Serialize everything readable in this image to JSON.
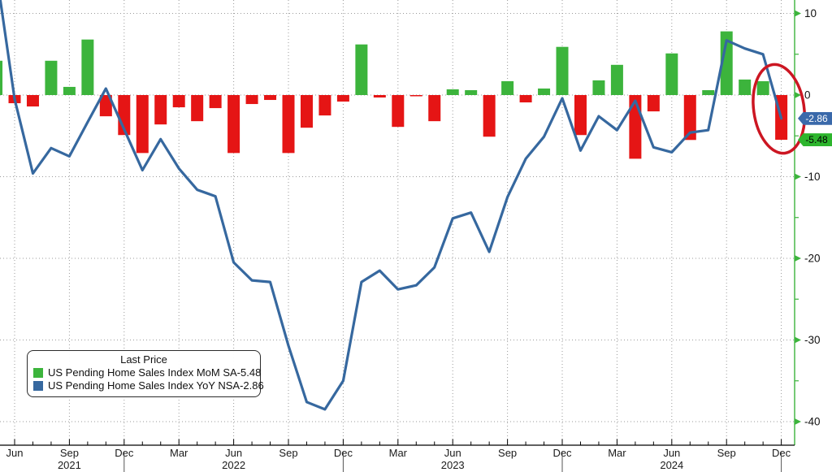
{
  "legend": {
    "title": "Last Price",
    "series": [
      {
        "label": "US Pending Home Sales Index MoM SA",
        "value": "-5.48",
        "color": "#3cb43c"
      },
      {
        "label": "US Pending Home Sales Index YoY NSA",
        "value": "-2.86",
        "color": "#36689f"
      }
    ]
  },
  "badges": {
    "yoy": {
      "text": "-2.86",
      "value": -2.86,
      "bg": "#3a69aa",
      "fg": "#ffffff"
    },
    "mom": {
      "text": "-5.48",
      "value": -5.48,
      "bg": "#2db52d",
      "fg": "#000000"
    }
  },
  "chart_data": {
    "type": "bar+line",
    "title": "",
    "x_unit": "month",
    "grid": "dotted",
    "ylim": [
      -40,
      10
    ],
    "y_axis": {
      "side": "right",
      "majors": [
        10,
        0,
        -10,
        -20,
        -30,
        -40
      ],
      "major_labels": [
        "10",
        "0",
        "-10",
        "-20",
        "-30",
        "-40"
      ],
      "minors": [
        5,
        -5,
        -15,
        -25,
        -35
      ],
      "color": "#3cb43c"
    },
    "series": [
      {
        "name": "US Pending Home Sales Index MoM SA",
        "type": "bar",
        "field": "mom",
        "color_up": "#3cb43c",
        "color_down": "#e51515",
        "last": -5.48
      },
      {
        "name": "US Pending Home Sales Index YoY NSA",
        "type": "line",
        "field": "yoy",
        "color": "#36689f",
        "last": -2.86
      }
    ],
    "months": [
      {
        "name": "May",
        "year": 2021,
        "mom": 4.2,
        "yoy": 15.0
      },
      {
        "name": "Jun",
        "year": 2021,
        "mom": -1.0,
        "yoy": -0.5
      },
      {
        "name": "Jul",
        "year": 2021,
        "mom": -1.4,
        "yoy": -9.6
      },
      {
        "name": "Aug",
        "year": 2021,
        "mom": 4.2,
        "yoy": -6.5
      },
      {
        "name": "Sep",
        "year": 2021,
        "mom": 1.0,
        "yoy": -7.5
      },
      {
        "name": "Oct",
        "year": 2021,
        "mom": 6.8,
        "yoy": -3.3
      },
      {
        "name": "Nov",
        "year": 2021,
        "mom": -2.6,
        "yoy": 0.8
      },
      {
        "name": "Dec",
        "year": 2021,
        "mom": -4.9,
        "yoy": -4.2
      },
      {
        "name": "Jan",
        "year": 2022,
        "mom": -7.1,
        "yoy": -9.2
      },
      {
        "name": "Feb",
        "year": 2022,
        "mom": -3.6,
        "yoy": -5.4
      },
      {
        "name": "Mar",
        "year": 2022,
        "mom": -1.5,
        "yoy": -9.0
      },
      {
        "name": "Apr",
        "year": 2022,
        "mom": -3.2,
        "yoy": -11.6
      },
      {
        "name": "May",
        "year": 2022,
        "mom": -1.6,
        "yoy": -12.4
      },
      {
        "name": "Jun",
        "year": 2022,
        "mom": -7.1,
        "yoy": -20.5
      },
      {
        "name": "Jul",
        "year": 2022,
        "mom": -1.1,
        "yoy": -22.7
      },
      {
        "name": "Aug",
        "year": 2022,
        "mom": -0.6,
        "yoy": -22.9
      },
      {
        "name": "Sep",
        "year": 2022,
        "mom": -7.1,
        "yoy": -30.7
      },
      {
        "name": "Oct",
        "year": 2022,
        "mom": -4.0,
        "yoy": -37.6
      },
      {
        "name": "Nov",
        "year": 2022,
        "mom": -2.5,
        "yoy": -38.5
      },
      {
        "name": "Dec",
        "year": 2022,
        "mom": -0.8,
        "yoy": -35.0
      },
      {
        "name": "Jan",
        "year": 2023,
        "mom": 6.2,
        "yoy": -22.9
      },
      {
        "name": "Feb",
        "year": 2023,
        "mom": -0.3,
        "yoy": -21.5
      },
      {
        "name": "Mar",
        "year": 2023,
        "mom": -3.9,
        "yoy": -23.8
      },
      {
        "name": "Apr",
        "year": 2023,
        "mom": -0.15,
        "yoy": -23.3
      },
      {
        "name": "May",
        "year": 2023,
        "mom": -3.2,
        "yoy": -21.1
      },
      {
        "name": "Jun",
        "year": 2023,
        "mom": 0.7,
        "yoy": -15.1
      },
      {
        "name": "Jul",
        "year": 2023,
        "mom": 0.6,
        "yoy": -14.4
      },
      {
        "name": "Aug",
        "year": 2023,
        "mom": -5.1,
        "yoy": -19.2
      },
      {
        "name": "Sep",
        "year": 2023,
        "mom": 1.7,
        "yoy": -12.5
      },
      {
        "name": "Oct",
        "year": 2023,
        "mom": -0.9,
        "yoy": -7.8
      },
      {
        "name": "Nov",
        "year": 2023,
        "mom": 0.8,
        "yoy": -5.1
      },
      {
        "name": "Dec",
        "year": 2023,
        "mom": 5.9,
        "yoy": -0.4
      },
      {
        "name": "Jan",
        "year": 2024,
        "mom": -4.9,
        "yoy": -6.8
      },
      {
        "name": "Feb",
        "year": 2024,
        "mom": 1.8,
        "yoy": -2.6
      },
      {
        "name": "Mar",
        "year": 2024,
        "mom": 3.7,
        "yoy": -4.3
      },
      {
        "name": "Apr",
        "year": 2024,
        "mom": -7.8,
        "yoy": -0.7
      },
      {
        "name": "May",
        "year": 2024,
        "mom": -2.0,
        "yoy": -6.4
      },
      {
        "name": "Jun",
        "year": 2024,
        "mom": 5.1,
        "yoy": -7.0
      },
      {
        "name": "Jul",
        "year": 2024,
        "mom": -5.5,
        "yoy": -4.6
      },
      {
        "name": "Aug",
        "year": 2024,
        "mom": 0.6,
        "yoy": -4.3
      },
      {
        "name": "Sep",
        "year": 2024,
        "mom": 7.8,
        "yoy": 6.7
      },
      {
        "name": "Oct",
        "year": 2024,
        "mom": 1.9,
        "yoy": 5.7
      },
      {
        "name": "Nov",
        "year": 2024,
        "mom": 1.7,
        "yoy": 5.0
      },
      {
        "name": "Dec",
        "year": 2024,
        "mom": -5.48,
        "yoy": -2.86
      }
    ],
    "years": [
      {
        "label": "2021",
        "index": 4
      },
      {
        "label": "2022",
        "index": 13
      },
      {
        "label": "2023",
        "index": 25
      },
      {
        "label": "2024",
        "index": 37
      }
    ],
    "year_separator_indices": [
      7,
      19,
      31,
      43
    ],
    "annotation": {
      "type": "ellipse",
      "target": "Dec 2024",
      "color": "#cc1622"
    },
    "colors": {
      "grid": "#9a9a9a",
      "x_axis": "#000000",
      "tick_text": "#1b1b1b"
    }
  }
}
